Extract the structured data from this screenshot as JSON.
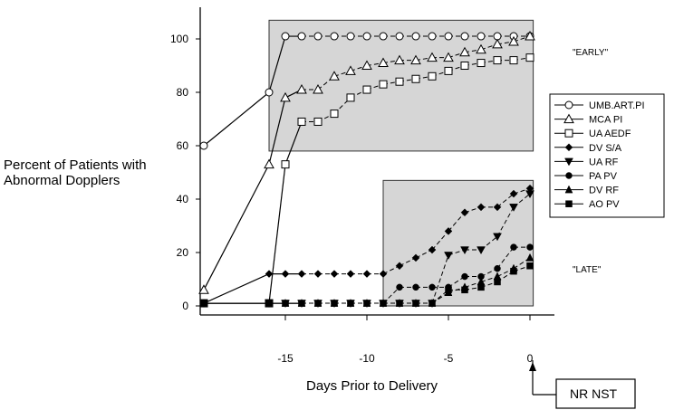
{
  "chart_data": {
    "type": "line",
    "ylabel": [
      "Percent of Patients with",
      "Abnormal Dopplers"
    ],
    "xlabel": "Days Prior to Delivery",
    "x_ticks": [
      -15,
      -10,
      -5,
      0
    ],
    "y_ticks": [
      0,
      20,
      40,
      60,
      80,
      100
    ],
    "xlim": [
      -20,
      0.5
    ],
    "ylim": [
      0,
      105
    ],
    "zones": [
      {
        "label": "\"EARLY\"",
        "x_range": [
          -16,
          0.2
        ],
        "y_range": [
          58,
          107
        ]
      },
      {
        "label": "\"LATE\"",
        "x_range": [
          -9,
          0.2
        ],
        "y_range": [
          0,
          47
        ]
      }
    ],
    "annotation": "NR NST",
    "legend_position": "right",
    "series": [
      {
        "name": "UMB.ART.PI",
        "marker": "circle-open",
        "points": [
          [
            -20,
            60
          ],
          [
            -16,
            80
          ],
          [
            -15,
            101
          ],
          [
            -14,
            101
          ],
          [
            -13,
            101
          ],
          [
            -12,
            101
          ],
          [
            -11,
            101
          ],
          [
            -10,
            101
          ],
          [
            -9,
            101
          ],
          [
            -8,
            101
          ],
          [
            -7,
            101
          ],
          [
            -6,
            101
          ],
          [
            -5,
            101
          ],
          [
            -4,
            101
          ],
          [
            -3,
            101
          ],
          [
            -2,
            101
          ],
          [
            -1,
            101
          ],
          [
            0,
            101
          ]
        ]
      },
      {
        "name": "MCA PI",
        "marker": "triangle-open",
        "points": [
          [
            -20,
            6
          ],
          [
            -16,
            53
          ],
          [
            -15,
            78
          ],
          [
            -14,
            81
          ],
          [
            -13,
            81
          ],
          [
            -12,
            86
          ],
          [
            -11,
            88
          ],
          [
            -10,
            90
          ],
          [
            -9,
            91
          ],
          [
            -8,
            92
          ],
          [
            -7,
            92
          ],
          [
            -6,
            93
          ],
          [
            -5,
            93
          ],
          [
            -4,
            95
          ],
          [
            -3,
            96
          ],
          [
            -2,
            98
          ],
          [
            -1,
            99
          ],
          [
            0,
            101
          ]
        ]
      },
      {
        "name": "UA AEDF",
        "marker": "square-open",
        "points": [
          [
            -20,
            1
          ],
          [
            -16,
            1
          ],
          [
            -15,
            53
          ],
          [
            -14,
            69
          ],
          [
            -13,
            69
          ],
          [
            -12,
            72
          ],
          [
            -11,
            78
          ],
          [
            -10,
            81
          ],
          [
            -9,
            83
          ],
          [
            -8,
            84
          ],
          [
            -7,
            85
          ],
          [
            -6,
            86
          ],
          [
            -5,
            88
          ],
          [
            -4,
            90
          ],
          [
            -3,
            91
          ],
          [
            -2,
            92
          ],
          [
            -1,
            92
          ],
          [
            0,
            93
          ]
        ]
      },
      {
        "name": "DV S/A",
        "marker": "diamond-filled",
        "points": [
          [
            -20,
            1
          ],
          [
            -16,
            12
          ],
          [
            -15,
            12
          ],
          [
            -14,
            12
          ],
          [
            -13,
            12
          ],
          [
            -12,
            12
          ],
          [
            -11,
            12
          ],
          [
            -10,
            12
          ],
          [
            -9,
            12
          ],
          [
            -8,
            15
          ],
          [
            -7,
            18
          ],
          [
            -6,
            21
          ],
          [
            -5,
            28
          ],
          [
            -4,
            35
          ],
          [
            -3,
            37
          ],
          [
            -2,
            37
          ],
          [
            -1,
            42
          ],
          [
            0,
            44
          ]
        ]
      },
      {
        "name": "UA RF",
        "marker": "triangle-down-filled",
        "points": [
          [
            -20,
            1
          ],
          [
            -16,
            1
          ],
          [
            -15,
            1
          ],
          [
            -14,
            1
          ],
          [
            -13,
            1
          ],
          [
            -12,
            1
          ],
          [
            -11,
            1
          ],
          [
            -10,
            1
          ],
          [
            -9,
            1
          ],
          [
            -8,
            1
          ],
          [
            -7,
            1
          ],
          [
            -6,
            1
          ],
          [
            -5,
            19
          ],
          [
            -4,
            21
          ],
          [
            -3,
            21
          ],
          [
            -2,
            26
          ],
          [
            -1,
            37
          ],
          [
            0,
            42
          ]
        ]
      },
      {
        "name": "PA PV",
        "marker": "circle-filled",
        "points": [
          [
            -20,
            1
          ],
          [
            -16,
            1
          ],
          [
            -15,
            1
          ],
          [
            -14,
            1
          ],
          [
            -13,
            1
          ],
          [
            -12,
            1
          ],
          [
            -11,
            1
          ],
          [
            -10,
            1
          ],
          [
            -9,
            1
          ],
          [
            -8,
            7
          ],
          [
            -7,
            7
          ],
          [
            -6,
            7
          ],
          [
            -5,
            7
          ],
          [
            -4,
            11
          ],
          [
            -3,
            11
          ],
          [
            -2,
            14
          ],
          [
            -1,
            22
          ],
          [
            0,
            22
          ]
        ]
      },
      {
        "name": "DV RF",
        "marker": "triangle-up-filled",
        "points": [
          [
            -20,
            1
          ],
          [
            -16,
            1
          ],
          [
            -15,
            1
          ],
          [
            -14,
            1
          ],
          [
            -13,
            1
          ],
          [
            -12,
            1
          ],
          [
            -11,
            1
          ],
          [
            -10,
            1
          ],
          [
            -9,
            1
          ],
          [
            -8,
            1
          ],
          [
            -7,
            1
          ],
          [
            -6,
            1
          ],
          [
            -5,
            5
          ],
          [
            -4,
            7
          ],
          [
            -3,
            9
          ],
          [
            -2,
            11
          ],
          [
            -1,
            14
          ],
          [
            0,
            18
          ]
        ]
      },
      {
        "name": "AO PV",
        "marker": "square-filled",
        "points": [
          [
            -20,
            1
          ],
          [
            -16,
            1
          ],
          [
            -15,
            1
          ],
          [
            -14,
            1
          ],
          [
            -13,
            1
          ],
          [
            -12,
            1
          ],
          [
            -11,
            1
          ],
          [
            -10,
            1
          ],
          [
            -9,
            1
          ],
          [
            -8,
            1
          ],
          [
            -7,
            1
          ],
          [
            -6,
            1
          ],
          [
            -5,
            6
          ],
          [
            -4,
            6
          ],
          [
            -3,
            7
          ],
          [
            -2,
            9
          ],
          [
            -1,
            13
          ],
          [
            0,
            15
          ]
        ]
      }
    ]
  }
}
